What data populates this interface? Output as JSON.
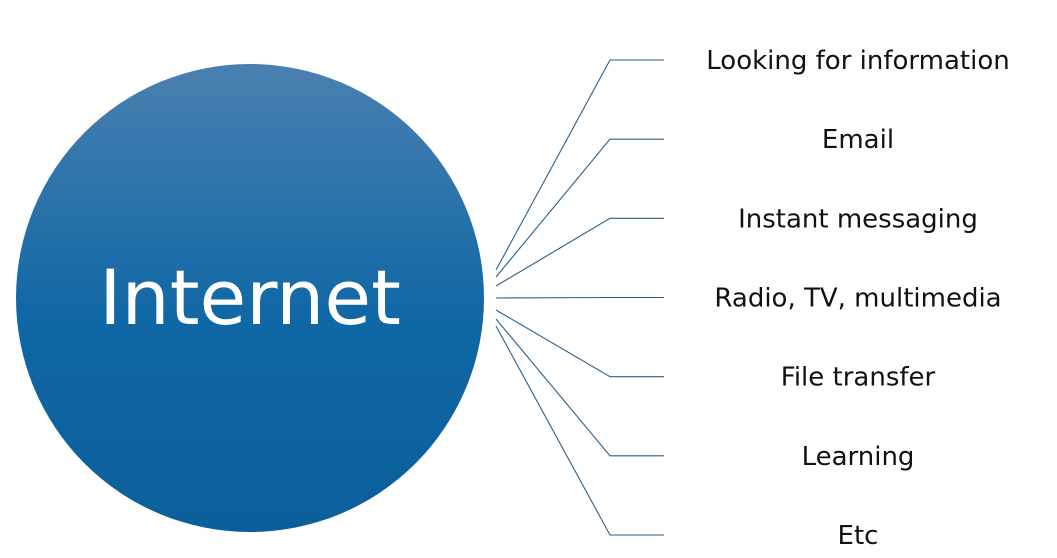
{
  "hub": {
    "label": "Internet",
    "color_top": "#4a80b0",
    "color_bottom": "#0b5f9a"
  },
  "connector_color": "#2b5f88",
  "branches": [
    {
      "label": "Looking for information"
    },
    {
      "label": "Email"
    },
    {
      "label": "Instant messaging"
    },
    {
      "label": "Radio, TV, multimedia"
    },
    {
      "label": "File transfer"
    },
    {
      "label": "Learning"
    },
    {
      "label": "Etc"
    }
  ]
}
